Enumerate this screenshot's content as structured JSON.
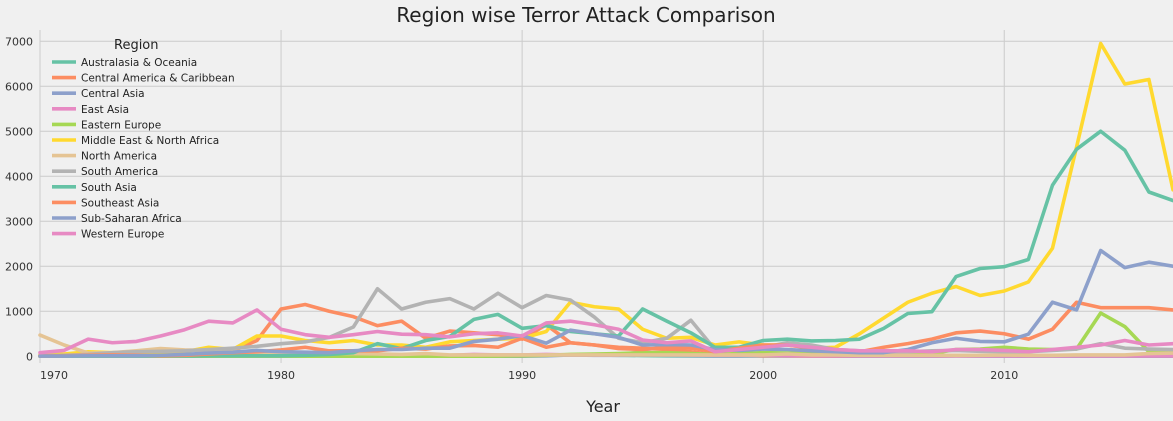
{
  "chart_data": {
    "type": "line",
    "title": "Region wise Terror Attack Comparison",
    "xlabel": "Year",
    "ylabel": "",
    "xlim": [
      1970,
      2017
    ],
    "ylim": [
      -150,
      7250
    ],
    "x_ticks": [
      1970,
      1980,
      1990,
      2000,
      2010
    ],
    "y_ticks": [
      0,
      1000,
      2000,
      3000,
      4000,
      5000,
      6000,
      7000
    ],
    "grid": true,
    "legend_title": "Region",
    "legend_position": "top-left",
    "x": [
      1970,
      1971,
      1972,
      1973,
      1974,
      1975,
      1976,
      1977,
      1978,
      1979,
      1980,
      1981,
      1982,
      1983,
      1984,
      1985,
      1986,
      1987,
      1988,
      1989,
      1990,
      1991,
      1992,
      1993,
      1994,
      1995,
      1996,
      1997,
      1998,
      1999,
      2000,
      2001,
      2002,
      2003,
      2004,
      2005,
      2006,
      2007,
      2008,
      2009,
      2010,
      2011,
      2012,
      2013,
      2014,
      2015,
      2016,
      2017
    ],
    "series": [
      {
        "name": "Australasia & Oceania",
        "color": "#66c2a5",
        "values": [
          0,
          1,
          0,
          1,
          0,
          0,
          1,
          0,
          2,
          5,
          3,
          2,
          4,
          2,
          5,
          8,
          10,
          6,
          8,
          12,
          15,
          20,
          25,
          30,
          20,
          15,
          10,
          8,
          5,
          4,
          6,
          5,
          6,
          5,
          4,
          8,
          5,
          6,
          10,
          12,
          15,
          8,
          10,
          5,
          15,
          20,
          15,
          18
        ]
      },
      {
        "name": "Central America & Caribbean",
        "color": "#fc8d62",
        "values": [
          5,
          10,
          20,
          30,
          20,
          10,
          10,
          80,
          120,
          350,
          1050,
          1150,
          1000,
          880,
          680,
          780,
          400,
          560,
          520,
          480,
          380,
          700,
          300,
          250,
          200,
          180,
          150,
          100,
          30,
          20,
          10,
          10,
          5,
          5,
          5,
          5,
          5,
          5,
          10,
          5,
          5,
          5,
          5,
          5,
          5,
          5,
          5,
          5
        ]
      },
      {
        "name": "Central Asia",
        "color": "#8da0cb",
        "values": [
          0,
          0,
          0,
          0,
          0,
          0,
          0,
          0,
          0,
          0,
          0,
          0,
          0,
          0,
          0,
          0,
          0,
          0,
          0,
          0,
          0,
          10,
          30,
          20,
          20,
          30,
          20,
          15,
          10,
          10,
          20,
          15,
          10,
          10,
          5,
          5,
          5,
          5,
          10,
          5,
          5,
          5,
          5,
          5,
          5,
          5,
          5,
          5
        ]
      },
      {
        "name": "East Asia",
        "color": "#e78ac3",
        "values": [
          2,
          5,
          5,
          10,
          10,
          10,
          10,
          20,
          10,
          10,
          20,
          20,
          10,
          10,
          10,
          20,
          20,
          20,
          40,
          30,
          30,
          40,
          30,
          30,
          30,
          100,
          40,
          30,
          20,
          20,
          20,
          10,
          10,
          10,
          10,
          10,
          10,
          10,
          10,
          10,
          10,
          10,
          10,
          10,
          10,
          10,
          10,
          10
        ]
      },
      {
        "name": "Eastern Europe",
        "color": "#a6d854",
        "values": [
          0,
          0,
          0,
          0,
          0,
          0,
          0,
          0,
          0,
          0,
          0,
          0,
          0,
          0,
          0,
          0,
          0,
          0,
          0,
          5,
          10,
          20,
          40,
          50,
          60,
          80,
          80,
          60,
          40,
          60,
          80,
          70,
          60,
          60,
          50,
          60,
          50,
          60,
          150,
          160,
          200,
          160,
          150,
          160,
          960,
          660,
          100,
          100
        ]
      },
      {
        "name": "Middle East & North Africa",
        "color": "#ffd92f",
        "values": [
          30,
          50,
          100,
          80,
          100,
          50,
          100,
          200,
          150,
          450,
          450,
          350,
          300,
          350,
          250,
          250,
          200,
          320,
          350,
          380,
          400,
          550,
          1200,
          1100,
          1050,
          600,
          400,
          420,
          250,
          320,
          250,
          250,
          180,
          200,
          500,
          850,
          1200,
          1400,
          1550,
          1350,
          1450,
          1650,
          2400,
          4650,
          6950,
          6050,
          6150,
          3700
        ]
      },
      {
        "name": "North America",
        "color": "#e5c494",
        "values": [
          470,
          250,
          70,
          80,
          120,
          170,
          140,
          130,
          110,
          80,
          80,
          70,
          60,
          60,
          50,
          40,
          60,
          30,
          30,
          30,
          30,
          30,
          30,
          30,
          30,
          30,
          30,
          30,
          30,
          30,
          30,
          50,
          30,
          30,
          20,
          20,
          20,
          20,
          20,
          20,
          30,
          20,
          20,
          30,
          30,
          30,
          60,
          70
        ]
      },
      {
        "name": "South America",
        "color": "#b3b3b3",
        "values": [
          10,
          20,
          40,
          80,
          100,
          110,
          120,
          150,
          180,
          220,
          280,
          320,
          420,
          650,
          1500,
          1050,
          1200,
          1280,
          1050,
          1400,
          1080,
          1350,
          1250,
          870,
          400,
          300,
          400,
          800,
          150,
          180,
          200,
          300,
          250,
          150,
          120,
          100,
          100,
          120,
          130,
          110,
          100,
          100,
          130,
          160,
          280,
          180,
          160,
          150
        ]
      },
      {
        "name": "South Asia",
        "color": "#66c2a5",
        "values": [
          2,
          3,
          5,
          5,
          5,
          5,
          5,
          10,
          10,
          10,
          10,
          20,
          40,
          80,
          280,
          170,
          350,
          440,
          820,
          930,
          620,
          680,
          550,
          500,
          450,
          1050,
          780,
          520,
          200,
          200,
          350,
          380,
          340,
          350,
          380,
          620,
          950,
          990,
          1770,
          1950,
          1990,
          2150,
          3800,
          4600,
          5000,
          4580,
          3650,
          3460
        ]
      },
      {
        "name": "Southeast Asia",
        "color": "#fc8d62",
        "values": [
          5,
          10,
          20,
          30,
          20,
          10,
          20,
          50,
          80,
          100,
          140,
          200,
          120,
          120,
          120,
          180,
          160,
          230,
          240,
          200,
          400,
          200,
          300,
          250,
          170,
          150,
          200,
          180,
          100,
          180,
          250,
          250,
          180,
          150,
          100,
          200,
          280,
          380,
          520,
          560,
          500,
          380,
          600,
          1200,
          1080,
          1080,
          1080,
          1030
        ]
      },
      {
        "name": "Sub-Saharan Africa",
        "color": "#8da0cb",
        "values": [
          3,
          5,
          10,
          10,
          10,
          20,
          40,
          70,
          90,
          130,
          100,
          90,
          80,
          120,
          150,
          150,
          180,
          180,
          330,
          380,
          460,
          290,
          580,
          500,
          420,
          250,
          260,
          250,
          150,
          130,
          160,
          150,
          120,
          100,
          80,
          80,
          150,
          300,
          400,
          330,
          320,
          490,
          1200,
          1030,
          2350,
          1970,
          2090,
          2000
        ]
      },
      {
        "name": "Western Europe",
        "color": "#e78ac3",
        "values": [
          80,
          130,
          380,
          300,
          330,
          450,
          590,
          780,
          740,
          1030,
          600,
          480,
          420,
          480,
          550,
          490,
          480,
          430,
          500,
          520,
          450,
          740,
          780,
          700,
          600,
          360,
          300,
          340,
          100,
          150,
          200,
          250,
          200,
          150,
          120,
          120,
          120,
          100,
          150,
          150,
          130,
          100,
          150,
          200,
          250,
          350,
          250,
          280
        ]
      }
    ]
  }
}
